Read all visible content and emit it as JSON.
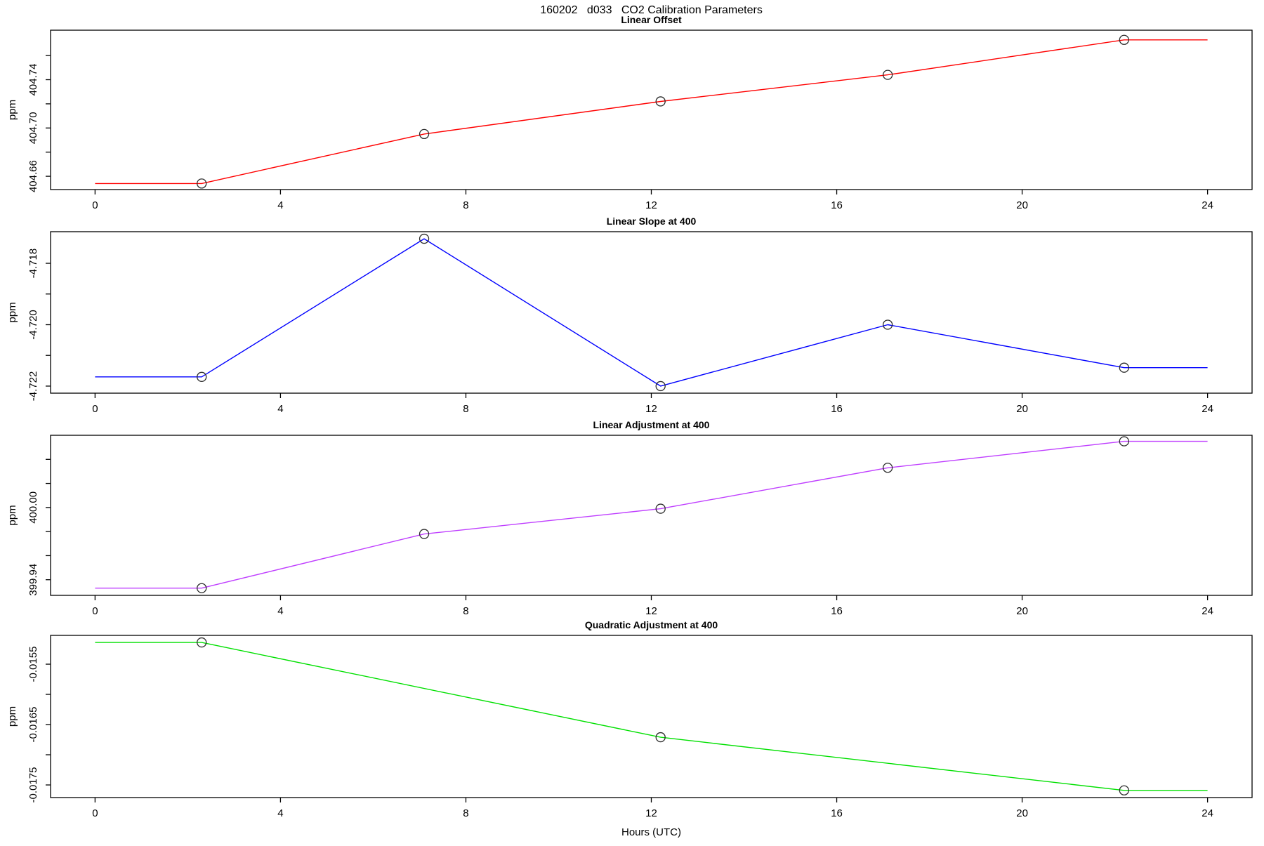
{
  "title": "160202   d033   CO2 Calibration Parameters",
  "xlabel": "Hours (UTC)",
  "x_ticks": [
    {
      "v": 0,
      "label": "0"
    },
    {
      "v": 4,
      "label": "4"
    },
    {
      "v": 8,
      "label": "8"
    },
    {
      "v": 12,
      "label": "12"
    },
    {
      "v": 16,
      "label": "16"
    },
    {
      "v": 20,
      "label": "20"
    },
    {
      "v": 24,
      "label": "24"
    }
  ],
  "xlim": [
    -0.96,
    24.96
  ],
  "chart_data": [
    {
      "type": "line",
      "title": "Linear Offset",
      "ylabel": "ppm",
      "color": "#ff0000",
      "marker": "open-circle",
      "x": [
        2.3,
        7.1,
        12.2,
        17.1,
        22.2
      ],
      "y": [
        404.654,
        404.695,
        404.722,
        404.744,
        404.773
      ],
      "extend_flat_to": [
        0,
        24
      ],
      "ylim": [
        404.649,
        404.781
      ],
      "y_ticks": [
        {
          "v": 404.66,
          "label": "404.66"
        },
        {
          "v": 404.68,
          "label": ""
        },
        {
          "v": 404.7,
          "label": "404.70"
        },
        {
          "v": 404.72,
          "label": ""
        },
        {
          "v": 404.74,
          "label": "404.74"
        },
        {
          "v": 404.76,
          "label": ""
        }
      ]
    },
    {
      "type": "line",
      "title": "Linear Slope at 400",
      "ylabel": "ppm",
      "color": "#0000ff",
      "marker": "open-circle",
      "x": [
        2.3,
        7.1,
        12.2,
        17.1,
        22.2
      ],
      "y": [
        -4.7217,
        -4.7172,
        -4.722,
        -4.72,
        -4.7214
      ],
      "extend_flat_to": [
        0,
        24
      ],
      "ylim": [
        -4.72223,
        -4.71697
      ],
      "y_ticks": [
        {
          "v": -4.718,
          "label": "-4.718"
        },
        {
          "v": -4.719,
          "label": ""
        },
        {
          "v": -4.72,
          "label": "-4.720"
        },
        {
          "v": -4.721,
          "label": ""
        },
        {
          "v": -4.722,
          "label": "-4.722"
        }
      ]
    },
    {
      "type": "line",
      "title": "Linear Adjustment at 400",
      "ylabel": "ppm",
      "color": "#bf3eff",
      "marker": "open-circle",
      "x": [
        2.3,
        7.1,
        12.2,
        17.1,
        22.2
      ],
      "y": [
        399.933,
        399.978,
        399.999,
        400.033,
        400.055
      ],
      "extend_flat_to": [
        0,
        24
      ],
      "ylim": [
        399.927,
        400.06
      ],
      "y_ticks": [
        {
          "v": 399.94,
          "label": "399.94"
        },
        {
          "v": 399.96,
          "label": ""
        },
        {
          "v": 399.98,
          "label": ""
        },
        {
          "v": 400.0,
          "label": "400.00"
        },
        {
          "v": 400.02,
          "label": ""
        },
        {
          "v": 400.04,
          "label": ""
        }
      ]
    },
    {
      "type": "line",
      "title": "Quadratic Adjustment at 400",
      "ylabel": "ppm",
      "color": "#00e000",
      "marker": "open-circle",
      "x": [
        2.3,
        12.2,
        22.2
      ],
      "y": [
        -0.01514,
        -0.01671,
        -0.01759
      ],
      "extend_flat_to": [
        0,
        24
      ],
      "ylim": [
        -0.017709,
        -0.015023
      ],
      "y_ticks": [
        {
          "v": -0.0155,
          "label": "-0.0155"
        },
        {
          "v": -0.016,
          "label": ""
        },
        {
          "v": -0.0165,
          "label": "-0.0165"
        },
        {
          "v": -0.017,
          "label": ""
        },
        {
          "v": -0.0175,
          "label": "-0.0175"
        }
      ]
    }
  ]
}
